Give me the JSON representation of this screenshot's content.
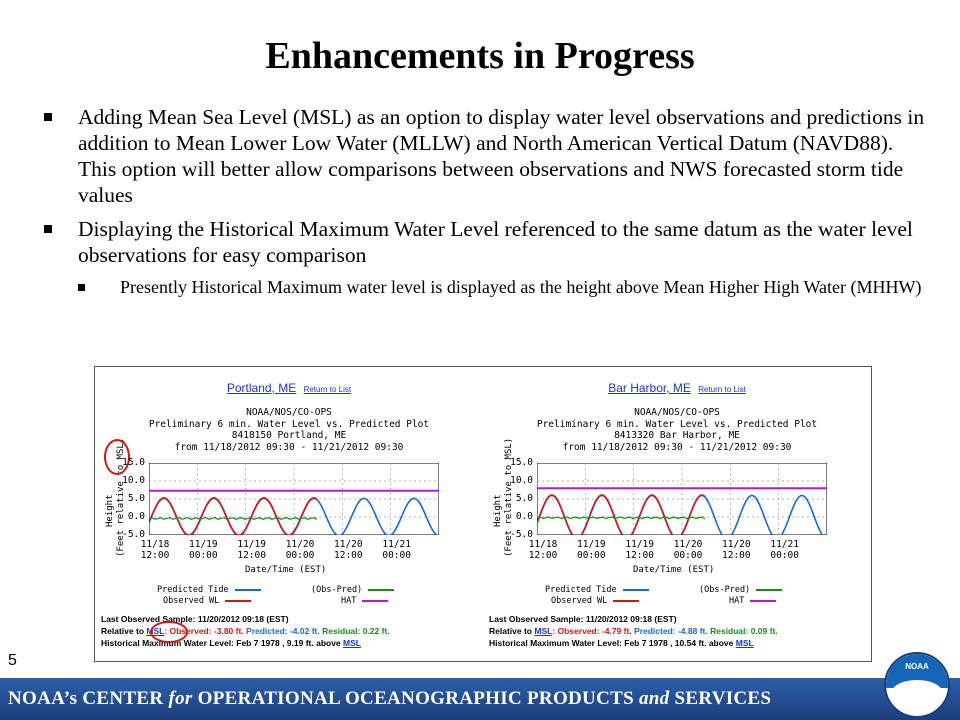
{
  "slide": {
    "title": "Enhancements in Progress",
    "bullets": [
      {
        "text": "Adding Mean Sea Level (MSL) as an option to display water level observations and predictions in addition to Mean Lower Low Water (MLLW) and North American Vertical Datum (NAVD88).  This option will better allow comparisons between observations and NWS forecasted storm tide values"
      },
      {
        "text": "Displaying the Historical Maximum Water Level referenced to the same datum as the water level observations for easy comparison"
      }
    ],
    "subbullet": "Presently Historical Maximum water level is displayed as the height above Mean Higher High Water (MHHW)",
    "slide_number": "5"
  },
  "footer": {
    "text_part1": "NOAA’s  CENTER ",
    "text_for": "for",
    "text_part2": " OPERATIONAL  OCEANOGRAPHIC  PRODUCTS ",
    "text_and": "and",
    "text_part3": " SERVICES",
    "logo_text": "NOAA"
  },
  "colors": {
    "predicted": "#1a6ad0",
    "observed": "#d01818",
    "obs_pred": "#1b8a1b",
    "hat": "#b21bd1",
    "footer_bg": "#1c3e7c"
  },
  "panels": [
    {
      "station_link": "Portland, ME",
      "return_link": "Return to List",
      "header_lines": [
        "NOAA/NOS/CO-OPS",
        "Preliminary 6 min. Water Level vs. Predicted Plot",
        "8418150 Portland, ME",
        "from 11/18/2012 09:30 - 11/21/2012 09:30"
      ],
      "y_axis_label": "Height",
      "y_axis_sub": "(Feet relative to MSL)",
      "x_axis_label": "Date/Time (EST)",
      "legend": {
        "predicted": "Predicted Tide",
        "observed": "Observed WL",
        "obs_pred": "(Obs-Pred)",
        "hat": "HAT"
      },
      "info": {
        "last_sample": "Last Observed Sample: 11/20/2012 09:18 (EST)",
        "relative_to": "Relative to ",
        "datum": "MSL",
        "observed": ": Observed: -3.80 ft.",
        "predicted": " Predicted: -4.02 ft.",
        "residual": " Residual: 0.22 ft.",
        "hist_max": "Historical Maximum Water Level: Feb 7 1978 , 9.19 ft. above ",
        "hist_datum": "MSL"
      },
      "chart_data": {
        "type": "line",
        "ylim": [
          -5,
          15
        ],
        "yticks": [
          "15.0",
          "10.0",
          "5.0",
          "0.0",
          "-5.0"
        ],
        "xticks": [
          "11/18\n12:00",
          "11/19\n00:00",
          "11/19\n12:00",
          "11/20\n00:00",
          "11/20\n12:00",
          "11/21\n00:00"
        ],
        "hat_level": 7.3,
        "tide_amplitude": 5.2,
        "residual_level": -0.4
      }
    },
    {
      "station_link": "Bar Harbor, ME",
      "return_link": "Return to List",
      "header_lines": [
        "NOAA/NOS/CO-OPS",
        "Preliminary 6 min. Water Level vs. Predicted Plot",
        "8413320 Bar Harbor, ME",
        "from 11/18/2012 09:30 - 11/21/2012 09:30"
      ],
      "y_axis_label": "Height",
      "y_axis_sub": "(Feet relative to MSL)",
      "x_axis_label": "Date/Time (EST)",
      "legend": {
        "predicted": "Predicted Tide",
        "observed": "Observed WL",
        "obs_pred": "(Obs-Pred)",
        "hat": "HAT"
      },
      "info": {
        "last_sample": "Last Observed Sample: 11/20/2012 09:18 (EST)",
        "relative_to": "Relative to ",
        "datum": "MSL",
        "observed": ": Observed: -4.79 ft.",
        "predicted": " Predicted: -4.88 ft.",
        "residual": " Residual: 0.09 ft.",
        "hist_max": "Historical Maximum Water Level: Feb 7 1978 , 10.54 ft. above ",
        "hist_datum": "MSL"
      },
      "chart_data": {
        "type": "line",
        "ylim": [
          -5,
          15
        ],
        "yticks": [
          "15.0",
          "10.0",
          "5.0",
          "0.0",
          "-5.0"
        ],
        "xticks": [
          "11/18\n12:00",
          "11/19\n00:00",
          "11/19\n12:00",
          "11/20\n00:00",
          "11/20\n12:00",
          "11/21\n00:00"
        ],
        "hat_level": 8.0,
        "tide_amplitude": 6.0,
        "residual_level": -0.2
      }
    }
  ]
}
